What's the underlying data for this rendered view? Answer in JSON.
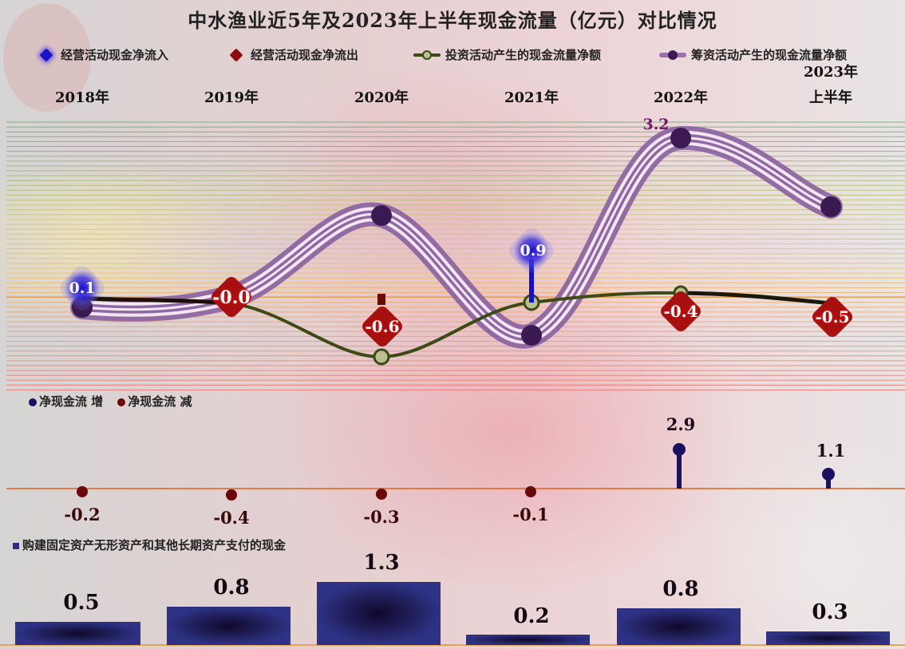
{
  "title": "中水渔业近5年及2023年上半年现金流量（亿元）对比情况",
  "legend": {
    "operating_inflow": "经营活动现金净流入",
    "operating_outflow": "经营活动现金净流出",
    "investing": "投资活动产生的现金流量净额",
    "financing": "筹资活动产生的现金流量净额"
  },
  "years": [
    "2018年",
    "2019年",
    "2020年",
    "2021年",
    "2022年",
    "2023年\n上半年"
  ],
  "year_line1": [
    "2018年",
    "2019年",
    "2020年",
    "2021年",
    "2022年",
    "2023年"
  ],
  "year_line2": [
    "",
    "",
    "",
    "",
    "",
    "上半年"
  ],
  "net_legend": {
    "increase": "净现金流 增",
    "decrease": "净现金流 减"
  },
  "capex_legend": "购建固定资产无形资产和其他长期资产支付的现金",
  "labels": {
    "operating": [
      "0.1",
      "-0.0",
      "-0.6",
      "0.9",
      "-0.4",
      "-0.5"
    ],
    "financing_peak": "3.2",
    "net": [
      "-0.2",
      "-0.4",
      "-0.3",
      "-0.1",
      "2.9",
      "1.1"
    ],
    "capex": [
      "0.5",
      "0.8",
      "1.3",
      "0.2",
      "0.8",
      "0.3"
    ]
  },
  "colors": {
    "inflow": "#1a12c8",
    "outflow": "#8c0c0c",
    "investing": "#3c4a14",
    "financing": "#7a4a90",
    "net_increase": "#1a1260",
    "net_decrease": "#6a0808",
    "capex_bar": "#2a2d80"
  },
  "chart_data": [
    {
      "type": "line",
      "title": "中水渔业近5年及2023年上半年现金流量（亿元）对比情况",
      "categories": [
        "2018年",
        "2019年",
        "2020年",
        "2021年",
        "2022年",
        "2023年上半年"
      ],
      "xlabel": "",
      "ylabel": "亿元",
      "series": [
        {
          "name": "经营活动现金净流入/流出",
          "values": [
            0.1,
            -0.0,
            -0.6,
            0.9,
            -0.4,
            -0.5
          ]
        },
        {
          "name": "投资活动产生的现金流量净额",
          "values": [
            0.0,
            -0.1,
            -1.2,
            -0.1,
            0.1,
            -0.1
          ]
        },
        {
          "name": "筹资活动产生的现金流量净额",
          "values": [
            -0.2,
            0.0,
            1.6,
            -0.8,
            3.2,
            1.8
          ]
        }
      ],
      "grid": true,
      "legend_position": "top"
    },
    {
      "type": "scatter",
      "title": "净现金流",
      "categories": [
        "2018年",
        "2019年",
        "2020年",
        "2021年",
        "2022年",
        "2023年上半年"
      ],
      "series": [
        {
          "name": "净现金流",
          "values": [
            -0.2,
            -0.4,
            -0.3,
            -0.1,
            2.9,
            1.1
          ]
        }
      ],
      "legend": [
        "净现金流 增",
        "净现金流 减"
      ]
    },
    {
      "type": "bar",
      "title": "购建固定资产无形资产和其他长期资产支付的现金",
      "categories": [
        "2018年",
        "2019年",
        "2020年",
        "2021年",
        "2022年",
        "2023年上半年"
      ],
      "values": [
        0.5,
        0.8,
        1.3,
        0.2,
        0.8,
        0.3
      ],
      "ylim": [
        0,
        1.5
      ]
    }
  ]
}
